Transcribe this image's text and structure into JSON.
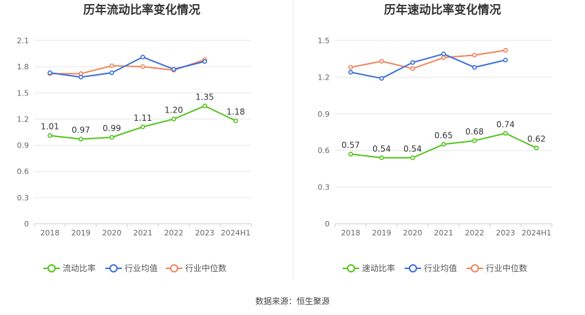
{
  "source_text": "数据来源：恒生聚源",
  "colors": {
    "main": "#52c41a",
    "industry_avg": "#3a6fd8",
    "industry_median": "#f0845c",
    "grid": "#e6e6e6",
    "axis": "#cccccc",
    "divider": "#e8e8e8"
  },
  "chart_data": [
    {
      "type": "line",
      "title": "历年流动比率变化情况",
      "categories": [
        "2018",
        "2019",
        "2020",
        "2021",
        "2022",
        "2023",
        "2024H1"
      ],
      "ylim": [
        0,
        2.1
      ],
      "yticks": [
        "0",
        "0.3",
        "0.6",
        "0.9",
        "1.2",
        "1.5",
        "1.8",
        "2.1"
      ],
      "grid": true,
      "legend_position": "bottom",
      "series": [
        {
          "name": "流动比率",
          "key": "main",
          "values": [
            1.01,
            0.97,
            0.99,
            1.11,
            1.2,
            1.35,
            1.18
          ],
          "labels": [
            "1.01",
            "0.97",
            "0.99",
            "1.11",
            "1.20",
            "1.35",
            "1.18"
          ]
        },
        {
          "name": "行业均值",
          "key": "industry_avg",
          "values": [
            1.73,
            1.68,
            1.73,
            1.91,
            1.77,
            1.86,
            null
          ]
        },
        {
          "name": "行业中位数",
          "key": "industry_median",
          "values": [
            1.72,
            1.72,
            1.81,
            1.8,
            1.76,
            1.88,
            null
          ]
        }
      ]
    },
    {
      "type": "line",
      "title": "历年速动比率变化情况",
      "categories": [
        "2018",
        "2019",
        "2020",
        "2021",
        "2022",
        "2023",
        "2024H1"
      ],
      "ylim": [
        0,
        1.5
      ],
      "yticks": [
        "0",
        "0.3",
        "0.6",
        "0.9",
        "1.2",
        "1.5"
      ],
      "grid": true,
      "legend_position": "bottom",
      "series": [
        {
          "name": "速动比率",
          "key": "main",
          "values": [
            0.57,
            0.54,
            0.54,
            0.65,
            0.68,
            0.74,
            0.62
          ],
          "labels": [
            "0.57",
            "0.54",
            "0.54",
            "0.65",
            "0.68",
            "0.74",
            "0.62"
          ]
        },
        {
          "name": "行业均值",
          "key": "industry_avg",
          "values": [
            1.24,
            1.19,
            1.32,
            1.39,
            1.28,
            1.34,
            null
          ]
        },
        {
          "name": "行业中位数",
          "key": "industry_median",
          "values": [
            1.28,
            1.33,
            1.27,
            1.36,
            1.38,
            1.42,
            null
          ]
        }
      ]
    }
  ]
}
